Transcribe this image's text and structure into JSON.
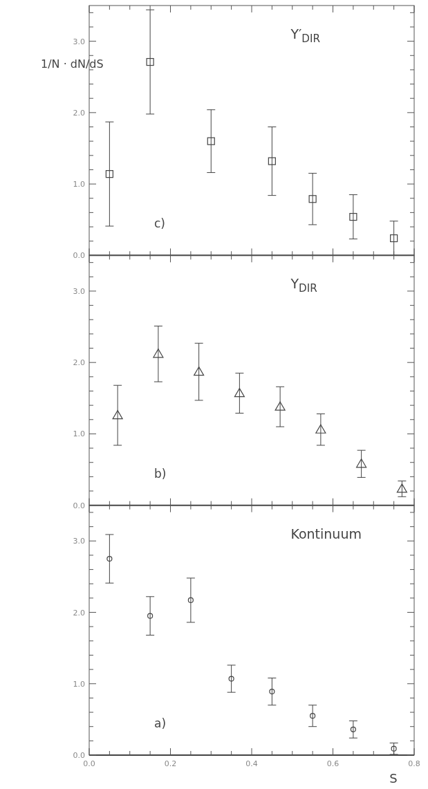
{
  "chart_data": [
    {
      "type": "scatter",
      "title": "Υ′$_{DIR}$",
      "ylabel": "1/N · dN/dS",
      "annotations": [
        "c)"
      ],
      "marker": "square",
      "color": "#444444",
      "x": [
        0.05,
        0.15,
        0.3,
        0.45,
        0.55,
        0.65,
        0.75
      ],
      "values": [
        1.14,
        2.71,
        1.6,
        1.32,
        0.79,
        0.54,
        0.24
      ],
      "errors": [
        0.73,
        0.73,
        0.44,
        0.48,
        0.36,
        0.31,
        0.24
      ],
      "xlim": [
        0,
        0.8
      ],
      "ylim": [
        0,
        3.5
      ],
      "xticks": [
        {
          "value": 0,
          "label": null
        },
        {
          "value": 0.05,
          "label": null
        },
        {
          "value": 0.1,
          "label": null
        },
        {
          "value": 0.15,
          "label": null
        },
        {
          "value": 0.2,
          "label": null
        },
        {
          "value": 0.25,
          "label": null
        },
        {
          "value": 0.3,
          "label": null
        },
        {
          "value": 0.35,
          "label": null
        },
        {
          "value": 0.4,
          "label": null
        },
        {
          "value": 0.45,
          "label": null
        },
        {
          "value": 0.5,
          "label": null
        },
        {
          "value": 0.55,
          "label": null
        },
        {
          "value": 0.6,
          "label": null
        },
        {
          "value": 0.65,
          "label": null
        },
        {
          "value": 0.7,
          "label": null
        },
        {
          "value": 0.75,
          "label": null
        },
        {
          "value": 0.8,
          "label": null
        }
      ],
      "yticks": [
        {
          "value": 0,
          "label": "0.0"
        },
        {
          "value": 0.2,
          "label": null
        },
        {
          "value": 0.4,
          "label": null
        },
        {
          "value": 0.6,
          "label": null
        },
        {
          "value": 0.8,
          "label": null
        },
        {
          "value": 1,
          "label": "1.0"
        },
        {
          "value": 1.2,
          "label": null
        },
        {
          "value": 1.4,
          "label": null
        },
        {
          "value": 1.6,
          "label": null
        },
        {
          "value": 1.8,
          "label": null
        },
        {
          "value": 2,
          "label": "2.0"
        },
        {
          "value": 2.2,
          "label": null
        },
        {
          "value": 2.4,
          "label": null
        },
        {
          "value": 2.6,
          "label": null
        },
        {
          "value": 2.8,
          "label": null
        },
        {
          "value": 3,
          "label": "3.0"
        },
        {
          "value": 3.2,
          "label": null
        },
        {
          "value": 3.4,
          "label": null
        }
      ],
      "tick_labels": "y"
    },
    {
      "type": "scatter",
      "title": "Υ$_{DIR}$",
      "annotations": [
        "b)"
      ],
      "marker": "triangle",
      "color": "#444444",
      "x": [
        0.07,
        0.17,
        0.27,
        0.37,
        0.47,
        0.57,
        0.67,
        0.77
      ],
      "values": [
        1.26,
        2.12,
        1.87,
        1.57,
        1.38,
        1.06,
        0.58,
        0.23
      ],
      "errors": [
        0.42,
        0.39,
        0.4,
        0.28,
        0.28,
        0.22,
        0.19,
        0.11
      ],
      "xlim": [
        0,
        0.8
      ],
      "ylim": [
        0,
        3.5
      ],
      "xticks": [
        {
          "value": 0,
          "label": null
        },
        {
          "value": 0.05,
          "label": null
        },
        {
          "value": 0.1,
          "label": null
        },
        {
          "value": 0.15,
          "label": null
        },
        {
          "value": 0.2,
          "label": null
        },
        {
          "value": 0.25,
          "label": null
        },
        {
          "value": 0.3,
          "label": null
        },
        {
          "value": 0.35,
          "label": null
        },
        {
          "value": 0.4,
          "label": null
        },
        {
          "value": 0.45,
          "label": null
        },
        {
          "value": 0.5,
          "label": null
        },
        {
          "value": 0.55,
          "label": null
        },
        {
          "value": 0.6,
          "label": null
        },
        {
          "value": 0.65,
          "label": null
        },
        {
          "value": 0.7,
          "label": null
        },
        {
          "value": 0.75,
          "label": null
        },
        {
          "value": 0.8,
          "label": null
        }
      ],
      "yticks": [
        {
          "value": 0,
          "label": "0.0"
        },
        {
          "value": 0.2,
          "label": null
        },
        {
          "value": 0.4,
          "label": null
        },
        {
          "value": 0.6,
          "label": null
        },
        {
          "value": 0.8,
          "label": null
        },
        {
          "value": 1,
          "label": "1.0"
        },
        {
          "value": 1.2,
          "label": null
        },
        {
          "value": 1.4,
          "label": null
        },
        {
          "value": 1.6,
          "label": null
        },
        {
          "value": 1.8,
          "label": null
        },
        {
          "value": 2,
          "label": "2.0"
        },
        {
          "value": 2.2,
          "label": null
        },
        {
          "value": 2.4,
          "label": null
        },
        {
          "value": 2.6,
          "label": null
        },
        {
          "value": 2.8,
          "label": null
        },
        {
          "value": 3,
          "label": "3.0"
        },
        {
          "value": 3.2,
          "label": null
        },
        {
          "value": 3.4,
          "label": null
        }
      ],
      "tick_labels": "y"
    },
    {
      "type": "scatter",
      "title": "Kontinuum",
      "xlabel": "S",
      "annotations": [
        "a)"
      ],
      "marker": "circle",
      "color": "#444444",
      "x": [
        0.05,
        0.15,
        0.25,
        0.35,
        0.45,
        0.55,
        0.65,
        0.75
      ],
      "values": [
        2.75,
        1.95,
        2.17,
        1.07,
        0.89,
        0.55,
        0.36,
        0.09
      ],
      "errors": [
        0.34,
        0.27,
        0.31,
        0.19,
        0.19,
        0.15,
        0.12,
        0.08
      ],
      "xlim": [
        0,
        0.8
      ],
      "ylim": [
        0,
        3.5
      ],
      "xticks": [
        {
          "value": 0,
          "label": "0.0"
        },
        {
          "value": 0.05,
          "label": null
        },
        {
          "value": 0.1,
          "label": null
        },
        {
          "value": 0.15,
          "label": null
        },
        {
          "value": 0.2,
          "label": "0.2"
        },
        {
          "value": 0.25,
          "label": null
        },
        {
          "value": 0.3,
          "label": null
        },
        {
          "value": 0.35,
          "label": null
        },
        {
          "value": 0.4,
          "label": "0.4"
        },
        {
          "value": 0.45,
          "label": null
        },
        {
          "value": 0.5,
          "label": null
        },
        {
          "value": 0.55,
          "label": null
        },
        {
          "value": 0.6,
          "label": "0.6"
        },
        {
          "value": 0.65,
          "label": null
        },
        {
          "value": 0.7,
          "label": null
        },
        {
          "value": 0.75,
          "label": null
        },
        {
          "value": 0.8,
          "label": "0.8"
        }
      ],
      "yticks": [
        {
          "value": 0,
          "label": "0.0"
        },
        {
          "value": 0.2,
          "label": null
        },
        {
          "value": 0.4,
          "label": null
        },
        {
          "value": 0.6,
          "label": null
        },
        {
          "value": 0.8,
          "label": null
        },
        {
          "value": 1,
          "label": "1.0"
        },
        {
          "value": 1.2,
          "label": null
        },
        {
          "value": 1.4,
          "label": null
        },
        {
          "value": 1.6,
          "label": null
        },
        {
          "value": 1.8,
          "label": null
        },
        {
          "value": 2,
          "label": "2.0"
        },
        {
          "value": 2.2,
          "label": null
        },
        {
          "value": 2.4,
          "label": null
        },
        {
          "value": 2.6,
          "label": null
        },
        {
          "value": 2.8,
          "label": null
        },
        {
          "value": 3,
          "label": "3.0"
        },
        {
          "value": 3.2,
          "label": null
        },
        {
          "value": 3.4,
          "label": null
        }
      ]
    }
  ]
}
